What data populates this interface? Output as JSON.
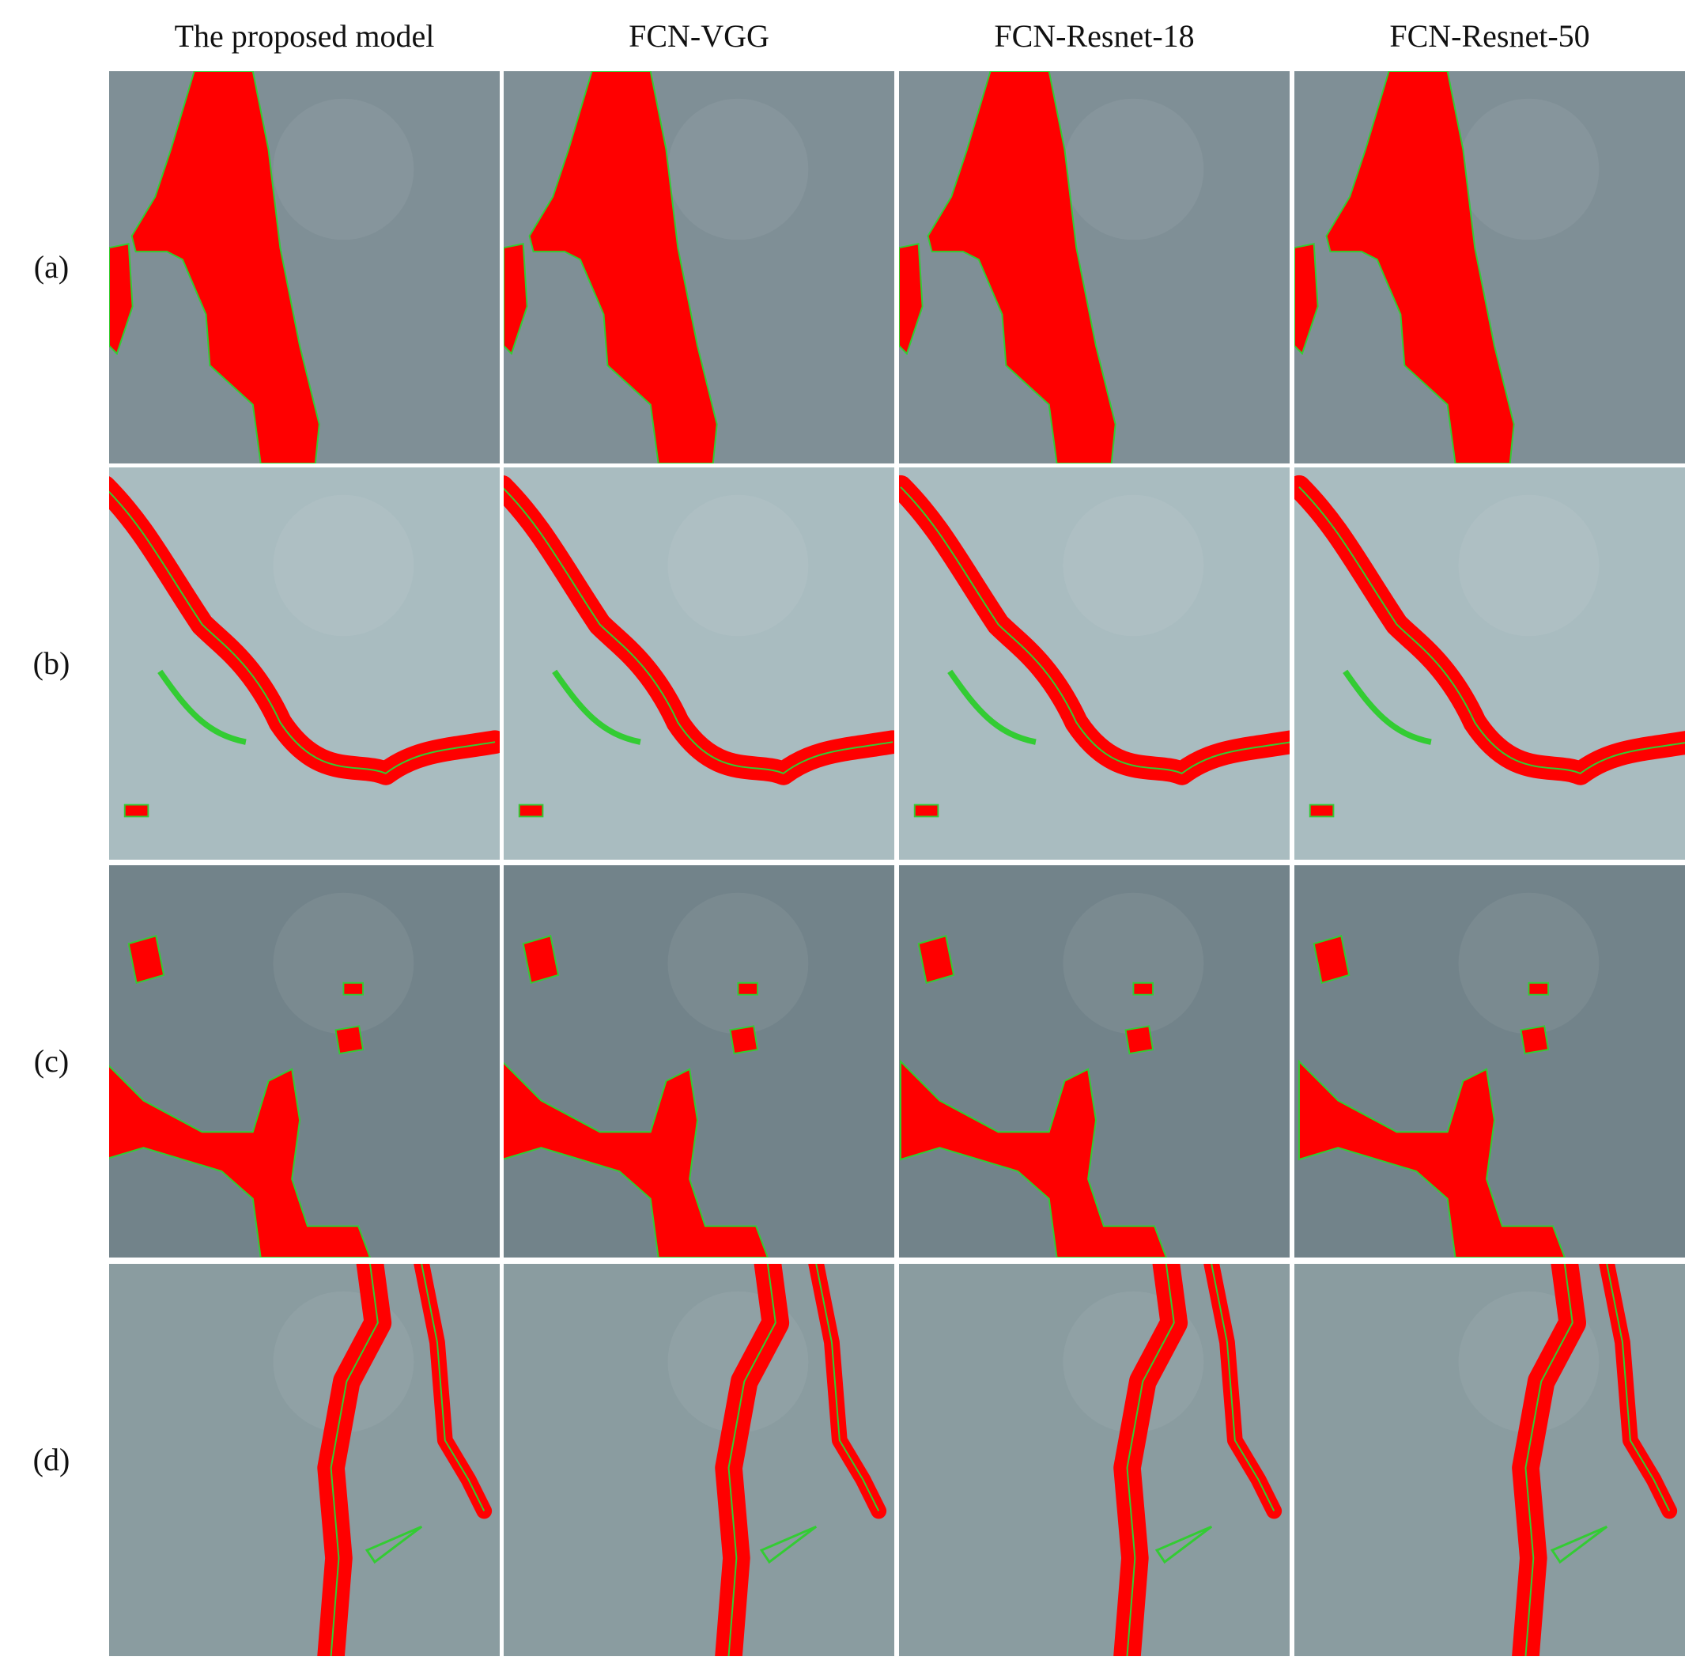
{
  "figure": {
    "columns": [
      "The proposed model",
      "FCN-VGG",
      "FCN-Resnet-18",
      "FCN-Resnet-50"
    ],
    "rows": [
      "(a)",
      "(b)",
      "(c)",
      "(d)"
    ]
  }
}
